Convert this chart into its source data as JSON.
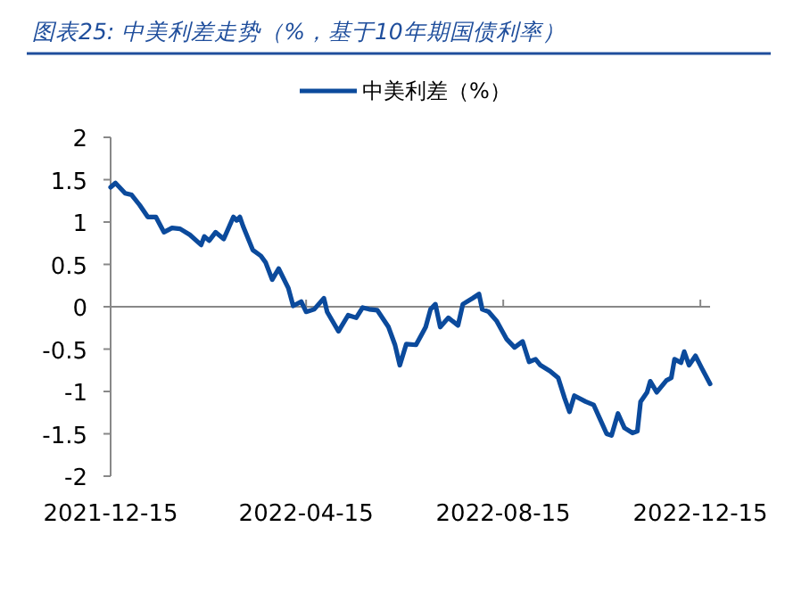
{
  "chart_data": {
    "type": "line",
    "title": "图表25: 中美利差走势（%，基于10年期国债利率）",
    "x": [
      "2021-12-15",
      "2021-12-18",
      "2021-12-24",
      "2021-12-28",
      "2022-01-02",
      "2022-01-07",
      "2022-01-12",
      "2022-01-17",
      "2022-01-22",
      "2022-01-27",
      "2022-02-02",
      "2022-02-09",
      "2022-02-11",
      "2022-02-14",
      "2022-02-18",
      "2022-02-23",
      "2022-03-01",
      "2022-03-03",
      "2022-03-05",
      "2022-03-07",
      "2022-03-13",
      "2022-03-18",
      "2022-03-21",
      "2022-03-25",
      "2022-03-29",
      "2022-04-04",
      "2022-04-07",
      "2022-04-12",
      "2022-04-15",
      "2022-04-20",
      "2022-04-26",
      "2022-04-28",
      "2022-05-05",
      "2022-05-11",
      "2022-05-16",
      "2022-05-20",
      "2022-05-24",
      "2022-05-29",
      "2022-06-05",
      "2022-06-09",
      "2022-06-12",
      "2022-06-16",
      "2022-06-22",
      "2022-06-26",
      "2022-06-28",
      "2022-07-01",
      "2022-07-04",
      "2022-07-07",
      "2022-07-12",
      "2022-07-18",
      "2022-07-21",
      "2022-07-27",
      "2022-07-31",
      "2022-08-02",
      "2022-08-06",
      "2022-08-11",
      "2022-08-17",
      "2022-08-22",
      "2022-08-27",
      "2022-08-31",
      "2022-09-04",
      "2022-09-07",
      "2022-09-13",
      "2022-09-18",
      "2022-09-22",
      "2022-09-25",
      "2022-09-28",
      "2022-10-05",
      "2022-10-10",
      "2022-10-14",
      "2022-10-18",
      "2022-10-21",
      "2022-10-25",
      "2022-10-29",
      "2022-11-03",
      "2022-11-06",
      "2022-11-08",
      "2022-11-12",
      "2022-11-14",
      "2022-11-18",
      "2022-11-24",
      "2022-11-27",
      "2022-11-29",
      "2022-12-03",
      "2022-12-05",
      "2022-12-08",
      "2022-12-12",
      "2022-12-16",
      "2022-12-21"
    ],
    "series": [
      {
        "name": "中美利差（%）",
        "color": "#0b4a9c",
        "values": [
          1.41,
          1.46,
          1.34,
          1.32,
          1.2,
          1.06,
          1.06,
          0.88,
          0.93,
          0.92,
          0.85,
          0.73,
          0.83,
          0.78,
          0.88,
          0.8,
          1.06,
          1.02,
          1.06,
          0.95,
          0.67,
          0.6,
          0.52,
          0.32,
          0.45,
          0.22,
          0.01,
          0.06,
          -0.06,
          -0.03,
          0.1,
          -0.06,
          -0.29,
          -0.1,
          -0.13,
          -0.01,
          -0.03,
          -0.04,
          -0.24,
          -0.45,
          -0.69,
          -0.44,
          -0.45,
          -0.31,
          -0.24,
          -0.03,
          0.03,
          -0.24,
          -0.13,
          -0.22,
          0.03,
          0.1,
          0.15,
          -0.03,
          -0.06,
          -0.17,
          -0.38,
          -0.48,
          -0.41,
          -0.65,
          -0.62,
          -0.69,
          -0.76,
          -0.84,
          -1.08,
          -1.24,
          -1.05,
          -1.12,
          -1.16,
          -1.33,
          -1.5,
          -1.52,
          -1.26,
          -1.43,
          -1.49,
          -1.47,
          -1.12,
          -1.01,
          -0.88,
          -1.01,
          -0.87,
          -0.84,
          -0.62,
          -0.66,
          -0.53,
          -0.69,
          -0.58,
          -0.73,
          -0.91
        ]
      }
    ],
    "xlim": [
      "2021-12-15",
      "2022-12-21"
    ],
    "xticks": [
      "2021-12-15",
      "2022-04-15",
      "2022-08-15",
      "2022-12-15"
    ],
    "ylim": [
      -2,
      2
    ],
    "yticks": [
      -2,
      -1.5,
      -1,
      -0.5,
      0,
      0.5,
      1,
      1.5,
      2
    ],
    "ref_lines": [
      {
        "axis": "y",
        "value": 0,
        "color": "#888888"
      }
    ],
    "legend": "top",
    "grid": false,
    "marker": "none",
    "line_style": "solid"
  }
}
